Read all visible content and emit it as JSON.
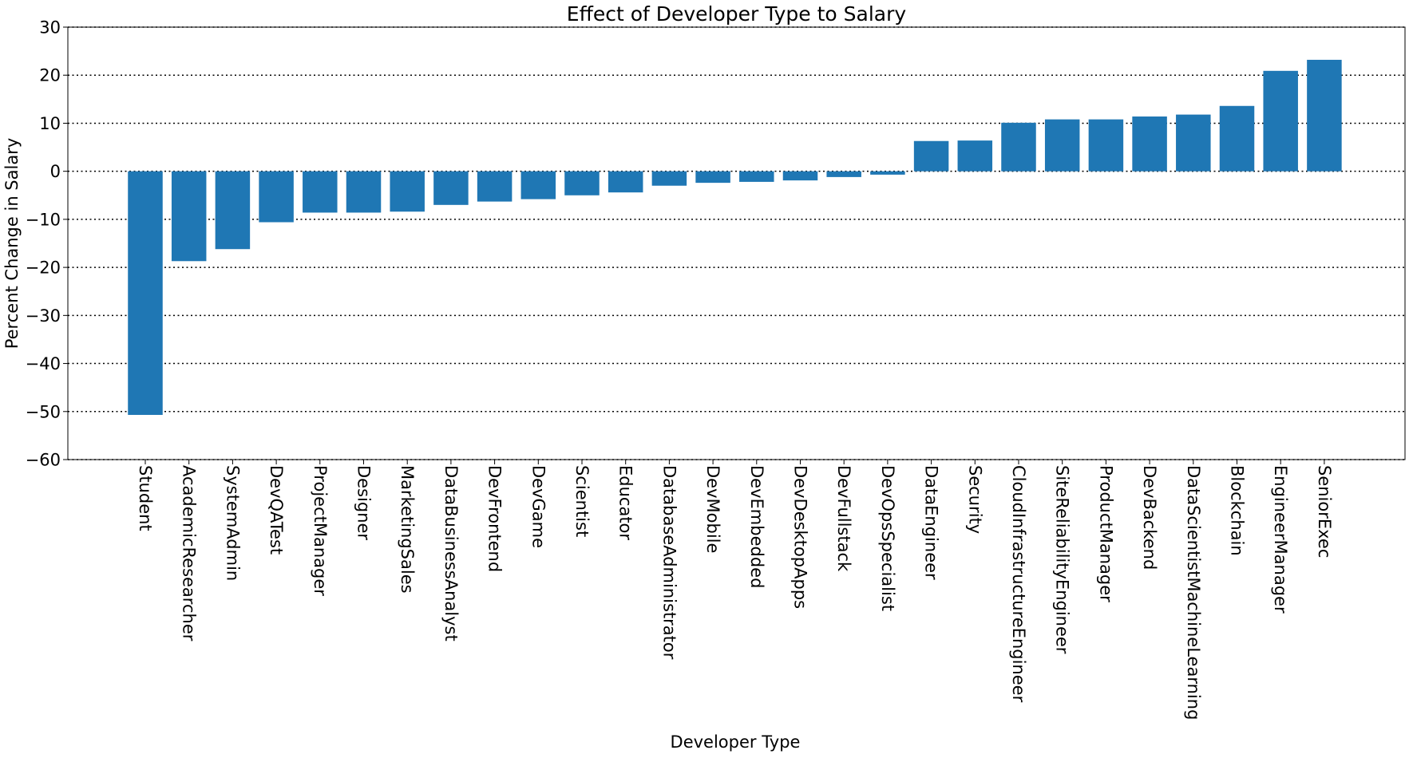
{
  "chart_data": {
    "type": "bar",
    "title": "Effect of Developer Type to Salary",
    "xlabel": "Developer Type",
    "ylabel": "Percent Change in Salary",
    "ylim": [
      -60,
      30
    ],
    "yticks": [
      -60,
      -50,
      -40,
      -30,
      -20,
      -10,
      0,
      10,
      20,
      30
    ],
    "grid": "y-dotted",
    "bar_color": "#1f77b4",
    "categories": [
      "Student",
      "AcademicResearcher",
      "SystemAdmin",
      "DevQATest",
      "ProjectManager",
      "Designer",
      "MarketingSales",
      "DataBusinessAnalyst",
      "DevFrontend",
      "DevGame",
      "Scientist",
      "Educator",
      "DatabaseAdministrator",
      "DevMobile",
      "DevEmbedded",
      "DevDesktopApps",
      "DevFullstack",
      "DevOpsSpecialist",
      "DataEngineer",
      "Security",
      "CloudInfrastructureEngineer",
      "SiteReliabilityEngineer",
      "ProductManager",
      "DevBackend",
      "DataScientistMachineLearning",
      "Blockchain",
      "EngineerManager",
      "SeniorExec"
    ],
    "values": [
      -50.7,
      -18.7,
      -16.2,
      -10.6,
      -8.6,
      -8.6,
      -8.4,
      -7.0,
      -6.3,
      -5.8,
      -5.0,
      -4.4,
      -3.0,
      -2.4,
      -2.2,
      -1.9,
      -1.2,
      -0.7,
      6.3,
      6.4,
      10.1,
      10.8,
      10.8,
      11.4,
      11.8,
      13.6,
      20.9,
      23.2
    ]
  }
}
